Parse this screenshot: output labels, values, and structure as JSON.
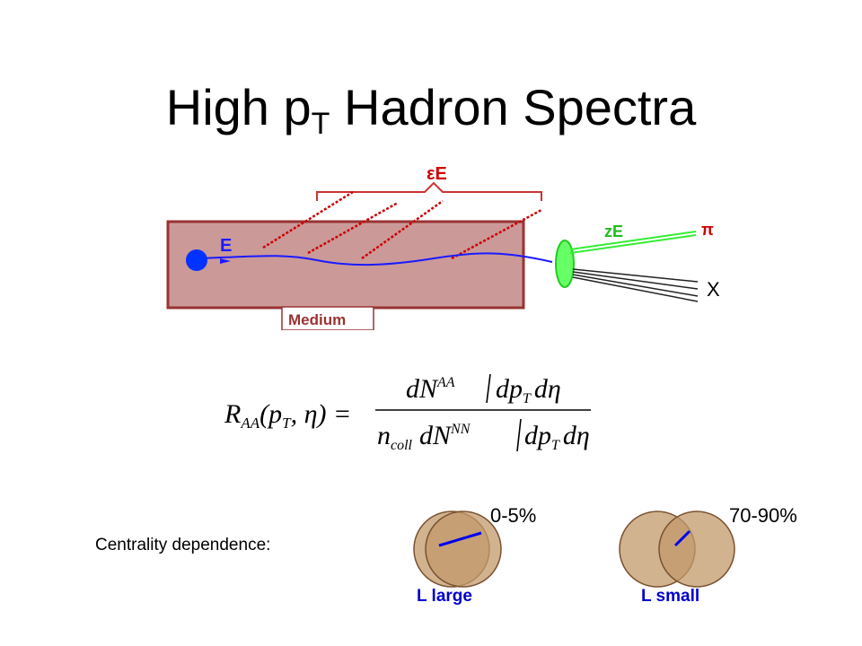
{
  "slide": {
    "title_main": "High p",
    "title_sub": "T",
    "title_rest": " Hadron Spectra"
  },
  "diagram": {
    "energy_label": "E",
    "loss_label": "εE",
    "leading_label": "zE",
    "pion_label": "π",
    "x_label": "X",
    "medium_label": "Medium",
    "colors": {
      "medium_fill": "#cc9999",
      "medium_border": "#993333",
      "path": "#1a1aff",
      "gluon": "#cc0000",
      "hadron": "#33ee33",
      "brace": "#cc3333"
    }
  },
  "formula": {
    "lhs_R": "R",
    "lhs_sub": "AA",
    "lhs_args": "(p",
    "lhs_args_sub": "T",
    "lhs_args_end": ", η) =",
    "num_dN": "dN",
    "num_sup": "AA",
    "num_rest": "dp",
    "num_rest_sub": "T",
    "num_deta": "dη",
    "den_n": "n",
    "den_n_sub": "coll",
    "den_dN": "dN",
    "den_sup": "NN",
    "den_rest": "dp",
    "den_rest_sub": "T",
    "den_deta": "dη"
  },
  "centrality": {
    "label": "Centrality dependence:",
    "central": {
      "range": "0-5%",
      "path_label": "L large"
    },
    "peripheral": {
      "range": "70-90%",
      "path_label": "L small"
    },
    "colors": {
      "nucleus": "#c19a6b",
      "outline": "#7a5230",
      "path": "#0000ee",
      "label": "#0000cc"
    }
  }
}
